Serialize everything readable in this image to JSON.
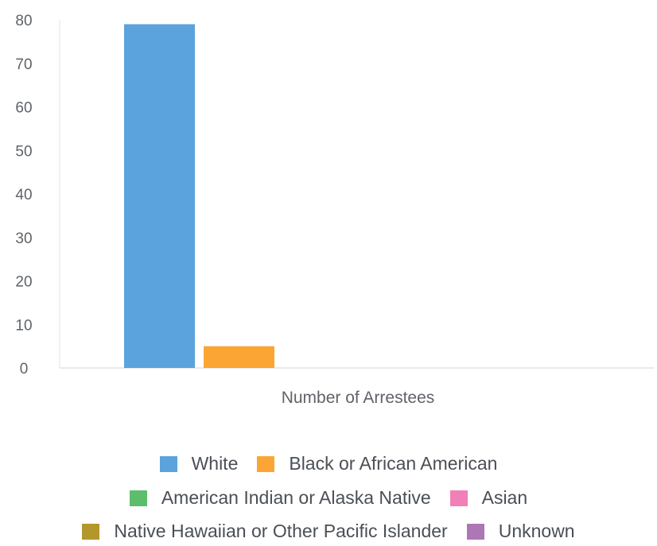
{
  "chart_data": {
    "type": "bar",
    "categories": [
      "Number of Arrestees"
    ],
    "series": [
      {
        "name": "White",
        "values": [
          79
        ],
        "color": "#5ba3dc"
      },
      {
        "name": "Black or African American",
        "values": [
          5
        ],
        "color": "#fba534"
      },
      {
        "name": "American Indian or Alaska Native",
        "values": [
          0
        ],
        "color": "#5cbe6a"
      },
      {
        "name": "Asian",
        "values": [
          0
        ],
        "color": "#f080b7"
      },
      {
        "name": "Native Hawaiian or Other Pacific Islander",
        "values": [
          0
        ],
        "color": "#b3962c"
      },
      {
        "name": "Unknown",
        "values": [
          0
        ],
        "color": "#ad77b5"
      }
    ],
    "y_ticks": [
      "0",
      "10",
      "20",
      "30",
      "40",
      "50",
      "60",
      "70",
      "80"
    ],
    "ylim": [
      0,
      80
    ],
    "grid": false,
    "legend_position": "bottom"
  }
}
